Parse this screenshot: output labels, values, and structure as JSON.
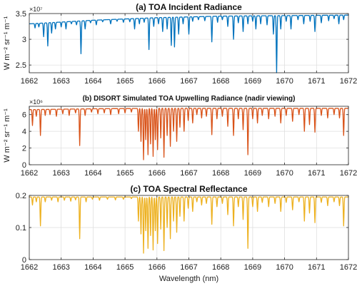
{
  "chart_data": [
    {
      "type": "line",
      "title": "(a) TOA Incident Radiance",
      "ylabel": "W m⁻² sr⁻¹ m⁻¹",
      "exponent_label": "×10⁷",
      "xlim": [
        1662,
        1672
      ],
      "ylim": [
        2.35,
        3.5
      ],
      "xticks": [
        "1662",
        "1663",
        "1664",
        "1665",
        "1666",
        "1667",
        "1668",
        "1669",
        "1670",
        "1671",
        "1672"
      ],
      "yticks": [
        "2.5",
        "3",
        "3.5"
      ],
      "ytick_values": [
        2.5,
        3.0,
        3.5
      ],
      "color": "#0072BD",
      "baseline": {
        "x": [
          1662,
          1664,
          1666,
          1668,
          1670,
          1672
        ],
        "y": [
          3.3,
          3.37,
          3.42,
          3.45,
          3.46,
          3.47
        ]
      },
      "dips": [
        [
          1662.18,
          3.22
        ],
        [
          1662.3,
          3.24
        ],
        [
          1662.45,
          3.05
        ],
        [
          1662.58,
          2.87
        ],
        [
          1662.7,
          3.12
        ],
        [
          1662.82,
          3.2
        ],
        [
          1663.0,
          3.24
        ],
        [
          1663.15,
          3.2
        ],
        [
          1663.32,
          3.3
        ],
        [
          1663.48,
          3.28
        ],
        [
          1663.62,
          2.72
        ],
        [
          1663.75,
          3.2
        ],
        [
          1663.92,
          3.32
        ],
        [
          1664.1,
          3.28
        ],
        [
          1664.3,
          3.34
        ],
        [
          1664.55,
          3.3
        ],
        [
          1664.75,
          3.35
        ],
        [
          1664.95,
          3.33
        ],
        [
          1665.15,
          3.34
        ],
        [
          1665.3,
          3.2
        ],
        [
          1665.45,
          3.3
        ],
        [
          1665.6,
          3.33
        ],
        [
          1665.75,
          2.8
        ],
        [
          1665.9,
          3.25
        ],
        [
          1666.05,
          3.3
        ],
        [
          1666.18,
          3.15
        ],
        [
          1666.32,
          3.2
        ],
        [
          1666.45,
          2.88
        ],
        [
          1666.55,
          2.85
        ],
        [
          1666.68,
          3.1
        ],
        [
          1666.82,
          3.3
        ],
        [
          1667.0,
          3.1
        ],
        [
          1667.12,
          3.35
        ],
        [
          1667.3,
          3.38
        ],
        [
          1667.5,
          3.36
        ],
        [
          1667.72,
          2.95
        ],
        [
          1667.9,
          3.33
        ],
        [
          1668.05,
          3.38
        ],
        [
          1668.22,
          3.25
        ],
        [
          1668.4,
          3.0
        ],
        [
          1668.55,
          3.32
        ],
        [
          1668.7,
          3.15
        ],
        [
          1668.85,
          3.3
        ],
        [
          1669.0,
          3.35
        ],
        [
          1669.1,
          3.2
        ],
        [
          1669.25,
          3.3
        ],
        [
          1669.45,
          3.28
        ],
        [
          1669.65,
          3.1
        ],
        [
          1669.75,
          2.35
        ],
        [
          1669.88,
          3.2
        ],
        [
          1670.05,
          3.35
        ],
        [
          1670.2,
          3.2
        ],
        [
          1670.42,
          3.38
        ],
        [
          1670.6,
          3.3
        ],
        [
          1670.8,
          3.35
        ],
        [
          1670.95,
          3.15
        ],
        [
          1671.15,
          3.32
        ],
        [
          1671.38,
          3.36
        ],
        [
          1671.55,
          3.4
        ],
        [
          1671.7,
          3.3
        ],
        [
          1671.85,
          3.38
        ]
      ]
    },
    {
      "type": "line",
      "title": "(b) DISORT Simulated TOA Upwelling Radiance (nadir viewing)",
      "ylabel": "W m⁻² sr⁻¹ m⁻¹",
      "exponent_label": "×10⁶",
      "xlim": [
        1662,
        1672
      ],
      "ylim": [
        0,
        7
      ],
      "xticks": [
        "1662",
        "1663",
        "1664",
        "1665",
        "1666",
        "1667",
        "1668",
        "1669",
        "1670",
        "1671",
        "1672"
      ],
      "yticks": [
        "0",
        "2",
        "4",
        "6"
      ],
      "ytick_values": [
        0,
        2,
        4,
        6
      ],
      "color": "#D95319",
      "baseline": {
        "x": [
          1662,
          1664,
          1666,
          1668,
          1670,
          1672
        ],
        "y": [
          6.6,
          6.7,
          6.75,
          6.75,
          6.75,
          6.75
        ]
      },
      "dips": [
        [
          1662.1,
          4.7
        ],
        [
          1662.22,
          5.8
        ],
        [
          1662.35,
          3.5
        ],
        [
          1662.5,
          5.9
        ],
        [
          1662.65,
          6.0
        ],
        [
          1662.85,
          5.8
        ],
        [
          1663.05,
          6.1
        ],
        [
          1663.25,
          5.9
        ],
        [
          1663.45,
          6.2
        ],
        [
          1663.58,
          2.3
        ],
        [
          1663.75,
          5.9
        ],
        [
          1663.95,
          6.3
        ],
        [
          1664.15,
          6.1
        ],
        [
          1664.35,
          6.2
        ],
        [
          1664.55,
          6.0
        ],
        [
          1664.8,
          6.1
        ],
        [
          1665.0,
          6.2
        ],
        [
          1665.2,
          6.3
        ],
        [
          1665.42,
          4.0
        ],
        [
          1665.5,
          2.8
        ],
        [
          1665.58,
          0.6
        ],
        [
          1665.65,
          3.0
        ],
        [
          1665.72,
          1.2
        ],
        [
          1665.8,
          2.5
        ],
        [
          1665.88,
          1.0
        ],
        [
          1665.95,
          3.0
        ],
        [
          1666.02,
          1.8
        ],
        [
          1666.12,
          3.2
        ],
        [
          1666.22,
          0.9
        ],
        [
          1666.32,
          3.5
        ],
        [
          1666.42,
          2.2
        ],
        [
          1666.52,
          4.0
        ],
        [
          1666.62,
          2.8
        ],
        [
          1666.72,
          4.5
        ],
        [
          1666.85,
          4.0
        ],
        [
          1666.98,
          5.3
        ],
        [
          1667.12,
          5.0
        ],
        [
          1667.25,
          6.0
        ],
        [
          1667.4,
          5.6
        ],
        [
          1667.55,
          5.8
        ],
        [
          1667.72,
          3.6
        ],
        [
          1667.88,
          5.5
        ],
        [
          1668.05,
          5.8
        ],
        [
          1668.22,
          4.6
        ],
        [
          1668.4,
          3.5
        ],
        [
          1668.55,
          5.5
        ],
        [
          1668.7,
          4.2
        ],
        [
          1668.85,
          1.2
        ],
        [
          1669.0,
          5.5
        ],
        [
          1669.15,
          5.0
        ],
        [
          1669.3,
          5.9
        ],
        [
          1669.5,
          5.5
        ],
        [
          1669.7,
          5.8
        ],
        [
          1669.88,
          5.0
        ],
        [
          1670.05,
          5.9
        ],
        [
          1670.25,
          5.2
        ],
        [
          1670.45,
          6.0
        ],
        [
          1670.62,
          4.0
        ],
        [
          1670.78,
          4.8
        ],
        [
          1670.95,
          3.9
        ],
        [
          1671.15,
          5.9
        ],
        [
          1671.35,
          5.6
        ],
        [
          1671.55,
          6.0
        ],
        [
          1671.72,
          5.6
        ],
        [
          1671.85,
          3.5
        ]
      ]
    },
    {
      "type": "line",
      "title": "(c) TOA Spectral Reflectance",
      "xlabel": "Wavelength (nm)",
      "xlim": [
        1662,
        1672
      ],
      "ylim": [
        0,
        0.2
      ],
      "xticks": [
        "1662",
        "1663",
        "1664",
        "1665",
        "1666",
        "1667",
        "1668",
        "1669",
        "1670",
        "1671",
        "1672"
      ],
      "yticks": [
        "0",
        "0.1",
        "0.2"
      ],
      "ytick_values": [
        0,
        0.1,
        0.2
      ],
      "color": "#EDB120",
      "baseline": {
        "x": [
          1662,
          1672
        ],
        "y": [
          0.195,
          0.195
        ]
      },
      "dips": [
        [
          1662.1,
          0.17
        ],
        [
          1662.22,
          0.18
        ],
        [
          1662.35,
          0.105
        ],
        [
          1662.5,
          0.18
        ],
        [
          1662.7,
          0.185
        ],
        [
          1662.9,
          0.18
        ],
        [
          1663.1,
          0.185
        ],
        [
          1663.3,
          0.182
        ],
        [
          1663.45,
          0.186
        ],
        [
          1663.58,
          0.065
        ],
        [
          1663.78,
          0.18
        ],
        [
          1663.98,
          0.188
        ],
        [
          1664.2,
          0.185
        ],
        [
          1664.45,
          0.188
        ],
        [
          1664.7,
          0.186
        ],
        [
          1664.95,
          0.188
        ],
        [
          1665.2,
          0.19
        ],
        [
          1665.42,
          0.12
        ],
        [
          1665.5,
          0.08
        ],
        [
          1665.58,
          0.02
        ],
        [
          1665.65,
          0.09
        ],
        [
          1665.72,
          0.035
        ],
        [
          1665.8,
          0.075
        ],
        [
          1665.88,
          0.03
        ],
        [
          1665.95,
          0.09
        ],
        [
          1666.02,
          0.05
        ],
        [
          1666.12,
          0.095
        ],
        [
          1666.22,
          0.028
        ],
        [
          1666.32,
          0.1
        ],
        [
          1666.42,
          0.065
        ],
        [
          1666.52,
          0.12
        ],
        [
          1666.62,
          0.085
        ],
        [
          1666.72,
          0.135
        ],
        [
          1666.85,
          0.12
        ],
        [
          1666.98,
          0.16
        ],
        [
          1667.12,
          0.15
        ],
        [
          1667.25,
          0.18
        ],
        [
          1667.4,
          0.17
        ],
        [
          1667.55,
          0.175
        ],
        [
          1667.72,
          0.11
        ],
        [
          1667.88,
          0.165
        ],
        [
          1668.05,
          0.175
        ],
        [
          1668.22,
          0.14
        ],
        [
          1668.4,
          0.105
        ],
        [
          1668.55,
          0.165
        ],
        [
          1668.7,
          0.125
        ],
        [
          1668.85,
          0.035
        ],
        [
          1669.0,
          0.165
        ],
        [
          1669.15,
          0.15
        ],
        [
          1669.3,
          0.178
        ],
        [
          1669.5,
          0.165
        ],
        [
          1669.7,
          0.175
        ],
        [
          1669.88,
          0.15
        ],
        [
          1670.05,
          0.178
        ],
        [
          1670.25,
          0.155
        ],
        [
          1670.45,
          0.18
        ],
        [
          1670.62,
          0.12
        ],
        [
          1670.78,
          0.145
        ],
        [
          1670.95,
          0.115
        ],
        [
          1671.15,
          0.178
        ],
        [
          1671.35,
          0.168
        ],
        [
          1671.55,
          0.18
        ],
        [
          1671.72,
          0.168
        ],
        [
          1671.85,
          0.105
        ]
      ]
    }
  ]
}
